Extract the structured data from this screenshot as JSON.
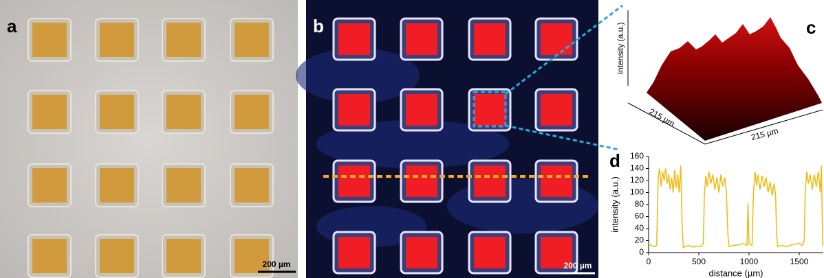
{
  "panels": {
    "a": {
      "label": "a",
      "scale_bar": "200 µm"
    },
    "b": {
      "label": "b",
      "scale_bar": "200 µm"
    },
    "c": {
      "label": "c",
      "z_label": "intensity (a.u.)",
      "depth_label": "215 µm",
      "width_label": "215 µm"
    }
  },
  "chart_data": {
    "type": "line",
    "label": "d",
    "x_label": "distance (µm)",
    "y_label": "intensity (a.u.)",
    "x": [
      0,
      20,
      40,
      60,
      80,
      95,
      110,
      125,
      140,
      155,
      170,
      185,
      200,
      215,
      230,
      245,
      260,
      275,
      290,
      305,
      320,
      335,
      345,
      360,
      400,
      440,
      480,
      520,
      545,
      555,
      570,
      585,
      600,
      620,
      640,
      660,
      680,
      700,
      720,
      740,
      760,
      775,
      790,
      800,
      850,
      900,
      950,
      980,
      990,
      1000,
      1030,
      1045,
      1060,
      1075,
      1090,
      1110,
      1130,
      1150,
      1170,
      1190,
      1210,
      1230,
      1250,
      1265,
      1275,
      1285,
      1320,
      1380,
      1440,
      1500,
      1530,
      1550,
      1560,
      1575,
      1590,
      1610,
      1630,
      1650,
      1670,
      1690,
      1710,
      1720,
      1735
    ],
    "series": [
      {
        "color": "#f2b90f",
        "values": [
          15,
          12,
          11,
          10,
          12,
          125,
          140,
          110,
          135,
          120,
          140,
          115,
          130,
          105,
          125,
          100,
          138,
          108,
          130,
          100,
          145,
          40,
          8,
          10,
          12,
          9,
          11,
          10,
          15,
          95,
          128,
          110,
          135,
          115,
          130,
          105,
          125,
          100,
          130,
          110,
          125,
          100,
          30,
          10,
          12,
          13,
          15,
          12,
          82,
          15,
          12,
          100,
          135,
          112,
          130,
          105,
          128,
          110,
          125,
          100,
          118,
          95,
          115,
          95,
          30,
          10,
          12,
          10,
          14,
          15,
          12,
          20,
          100,
          135,
          115,
          130,
          105,
          130,
          110,
          135,
          100,
          145,
          10
        ]
      }
    ],
    "xlim": [
      0,
      1740
    ],
    "ylim": [
      0,
      160
    ],
    "xticks": [
      0,
      500,
      1000,
      1500
    ],
    "yticks": [
      0,
      20,
      40,
      60,
      80,
      100,
      120,
      140,
      160
    ]
  }
}
